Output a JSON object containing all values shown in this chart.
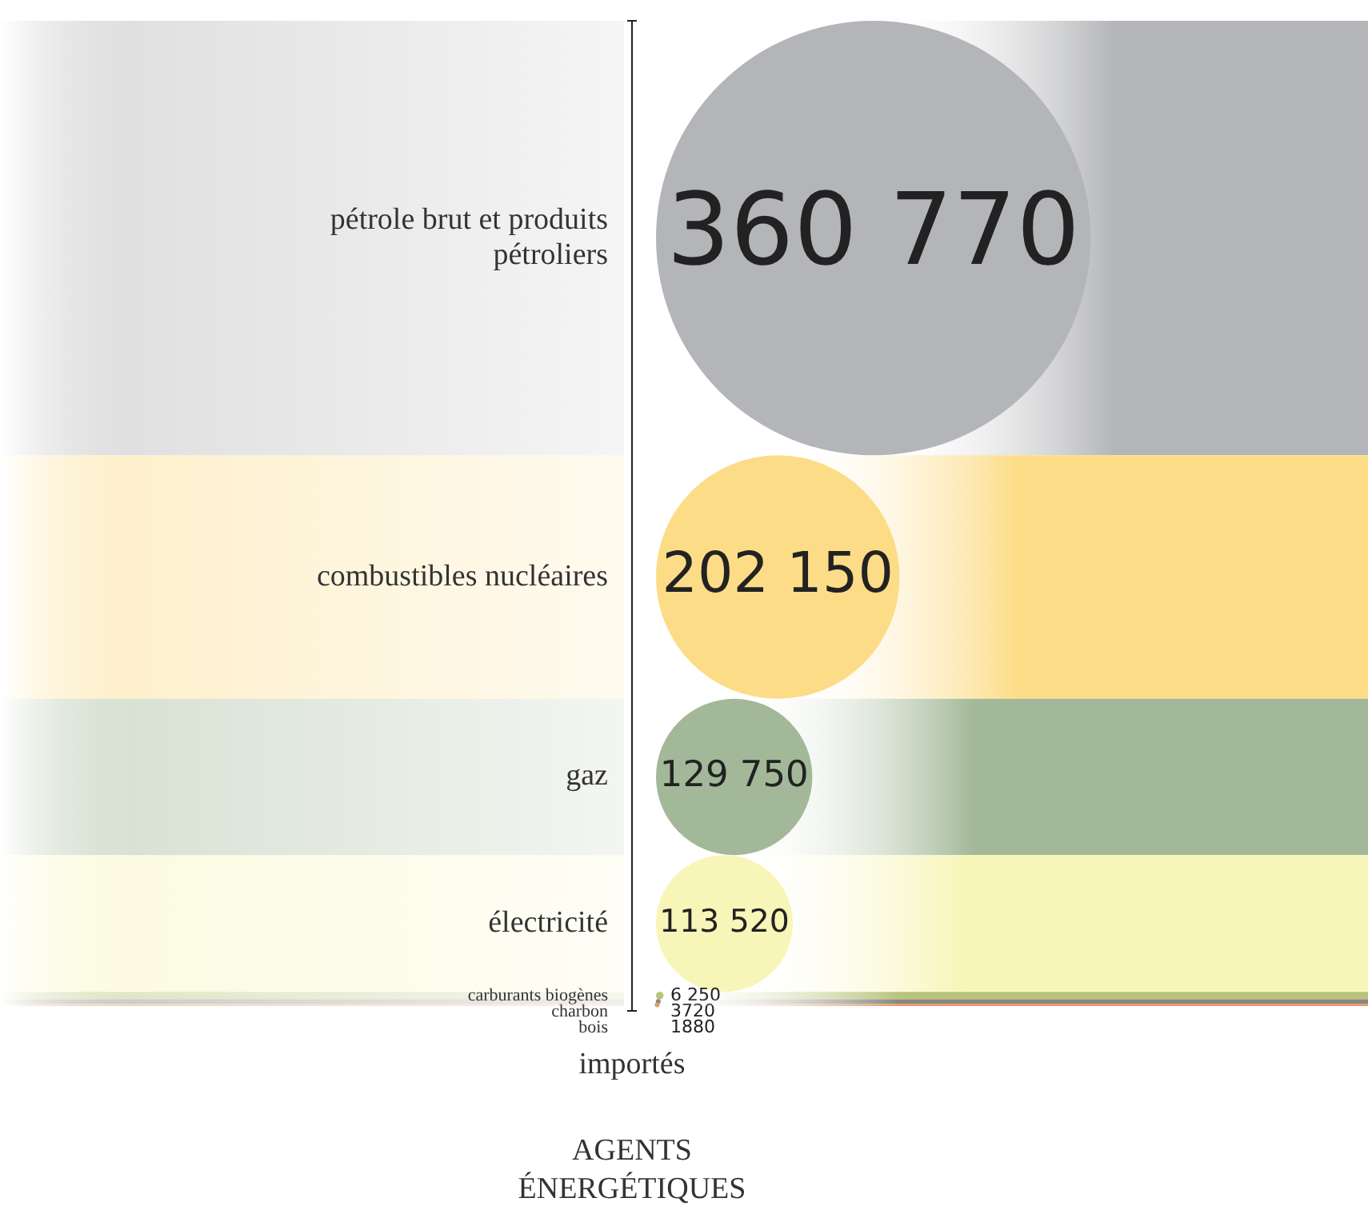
{
  "chart_data": {
    "type": "other",
    "title": "AGENTS ÉNERGÉTIQUES",
    "xlabel": "importés",
    "categories": [
      "pétrole brut et produits pétroliers",
      "combustibles nucléaires",
      "gaz",
      "électricité",
      "carburants biogènes",
      "charbon",
      "bois"
    ],
    "values": [
      360770,
      202150,
      129750,
      113520,
      6250,
      3720,
      1880
    ],
    "colors": [
      "#b4b5b8",
      "#fddc87",
      "#a3b898",
      "#f8f5b8",
      "#b7c47a",
      "#8b8680",
      "#e39b6e"
    ],
    "value_labels": [
      "360 770",
      "202 150",
      "129 750",
      "113 520",
      "6 250",
      "3720",
      "1880"
    ]
  }
}
